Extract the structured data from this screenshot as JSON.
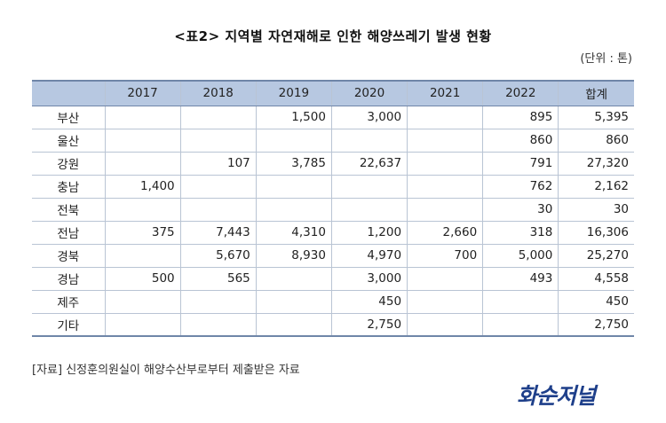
{
  "title": "<표2> 지역별 자연재해로 인한 해양쓰레기 발생 현황",
  "unit": "(단위 : 톤)",
  "table": {
    "columns": [
      "",
      "2017",
      "2018",
      "2019",
      "2020",
      "2021",
      "2022",
      "합계"
    ],
    "rows": [
      [
        "부산",
        "",
        "",
        "1,500",
        "3,000",
        "",
        "895",
        "5,395"
      ],
      [
        "울산",
        "",
        "",
        "",
        "",
        "",
        "860",
        "860"
      ],
      [
        "강원",
        "",
        "107",
        "3,785",
        "22,637",
        "",
        "791",
        "27,320"
      ],
      [
        "충남",
        "1,400",
        "",
        "",
        "",
        "",
        "762",
        "2,162"
      ],
      [
        "전북",
        "",
        "",
        "",
        "",
        "",
        "30",
        "30"
      ],
      [
        "전남",
        "375",
        "7,443",
        "4,310",
        "1,200",
        "2,660",
        "318",
        "16,306"
      ],
      [
        "경북",
        "",
        "5,670",
        "8,930",
        "4,970",
        "700",
        "5,000",
        "25,270"
      ],
      [
        "경남",
        "500",
        "565",
        "",
        "3,000",
        "",
        "493",
        "4,558"
      ],
      [
        "제주",
        "",
        "",
        "",
        "450",
        "",
        "",
        "450"
      ],
      [
        "기타",
        "",
        "",
        "",
        "2,750",
        "",
        "",
        "2,750"
      ]
    ]
  },
  "source": "[자료] 신정훈의원실이 해양수산부로부터 제출받은 자료",
  "logo_text": "화순저널",
  "colors": {
    "header_bg": "#b7c8e1",
    "border": "#b9c4d4",
    "logo": "#1e3f8a"
  }
}
